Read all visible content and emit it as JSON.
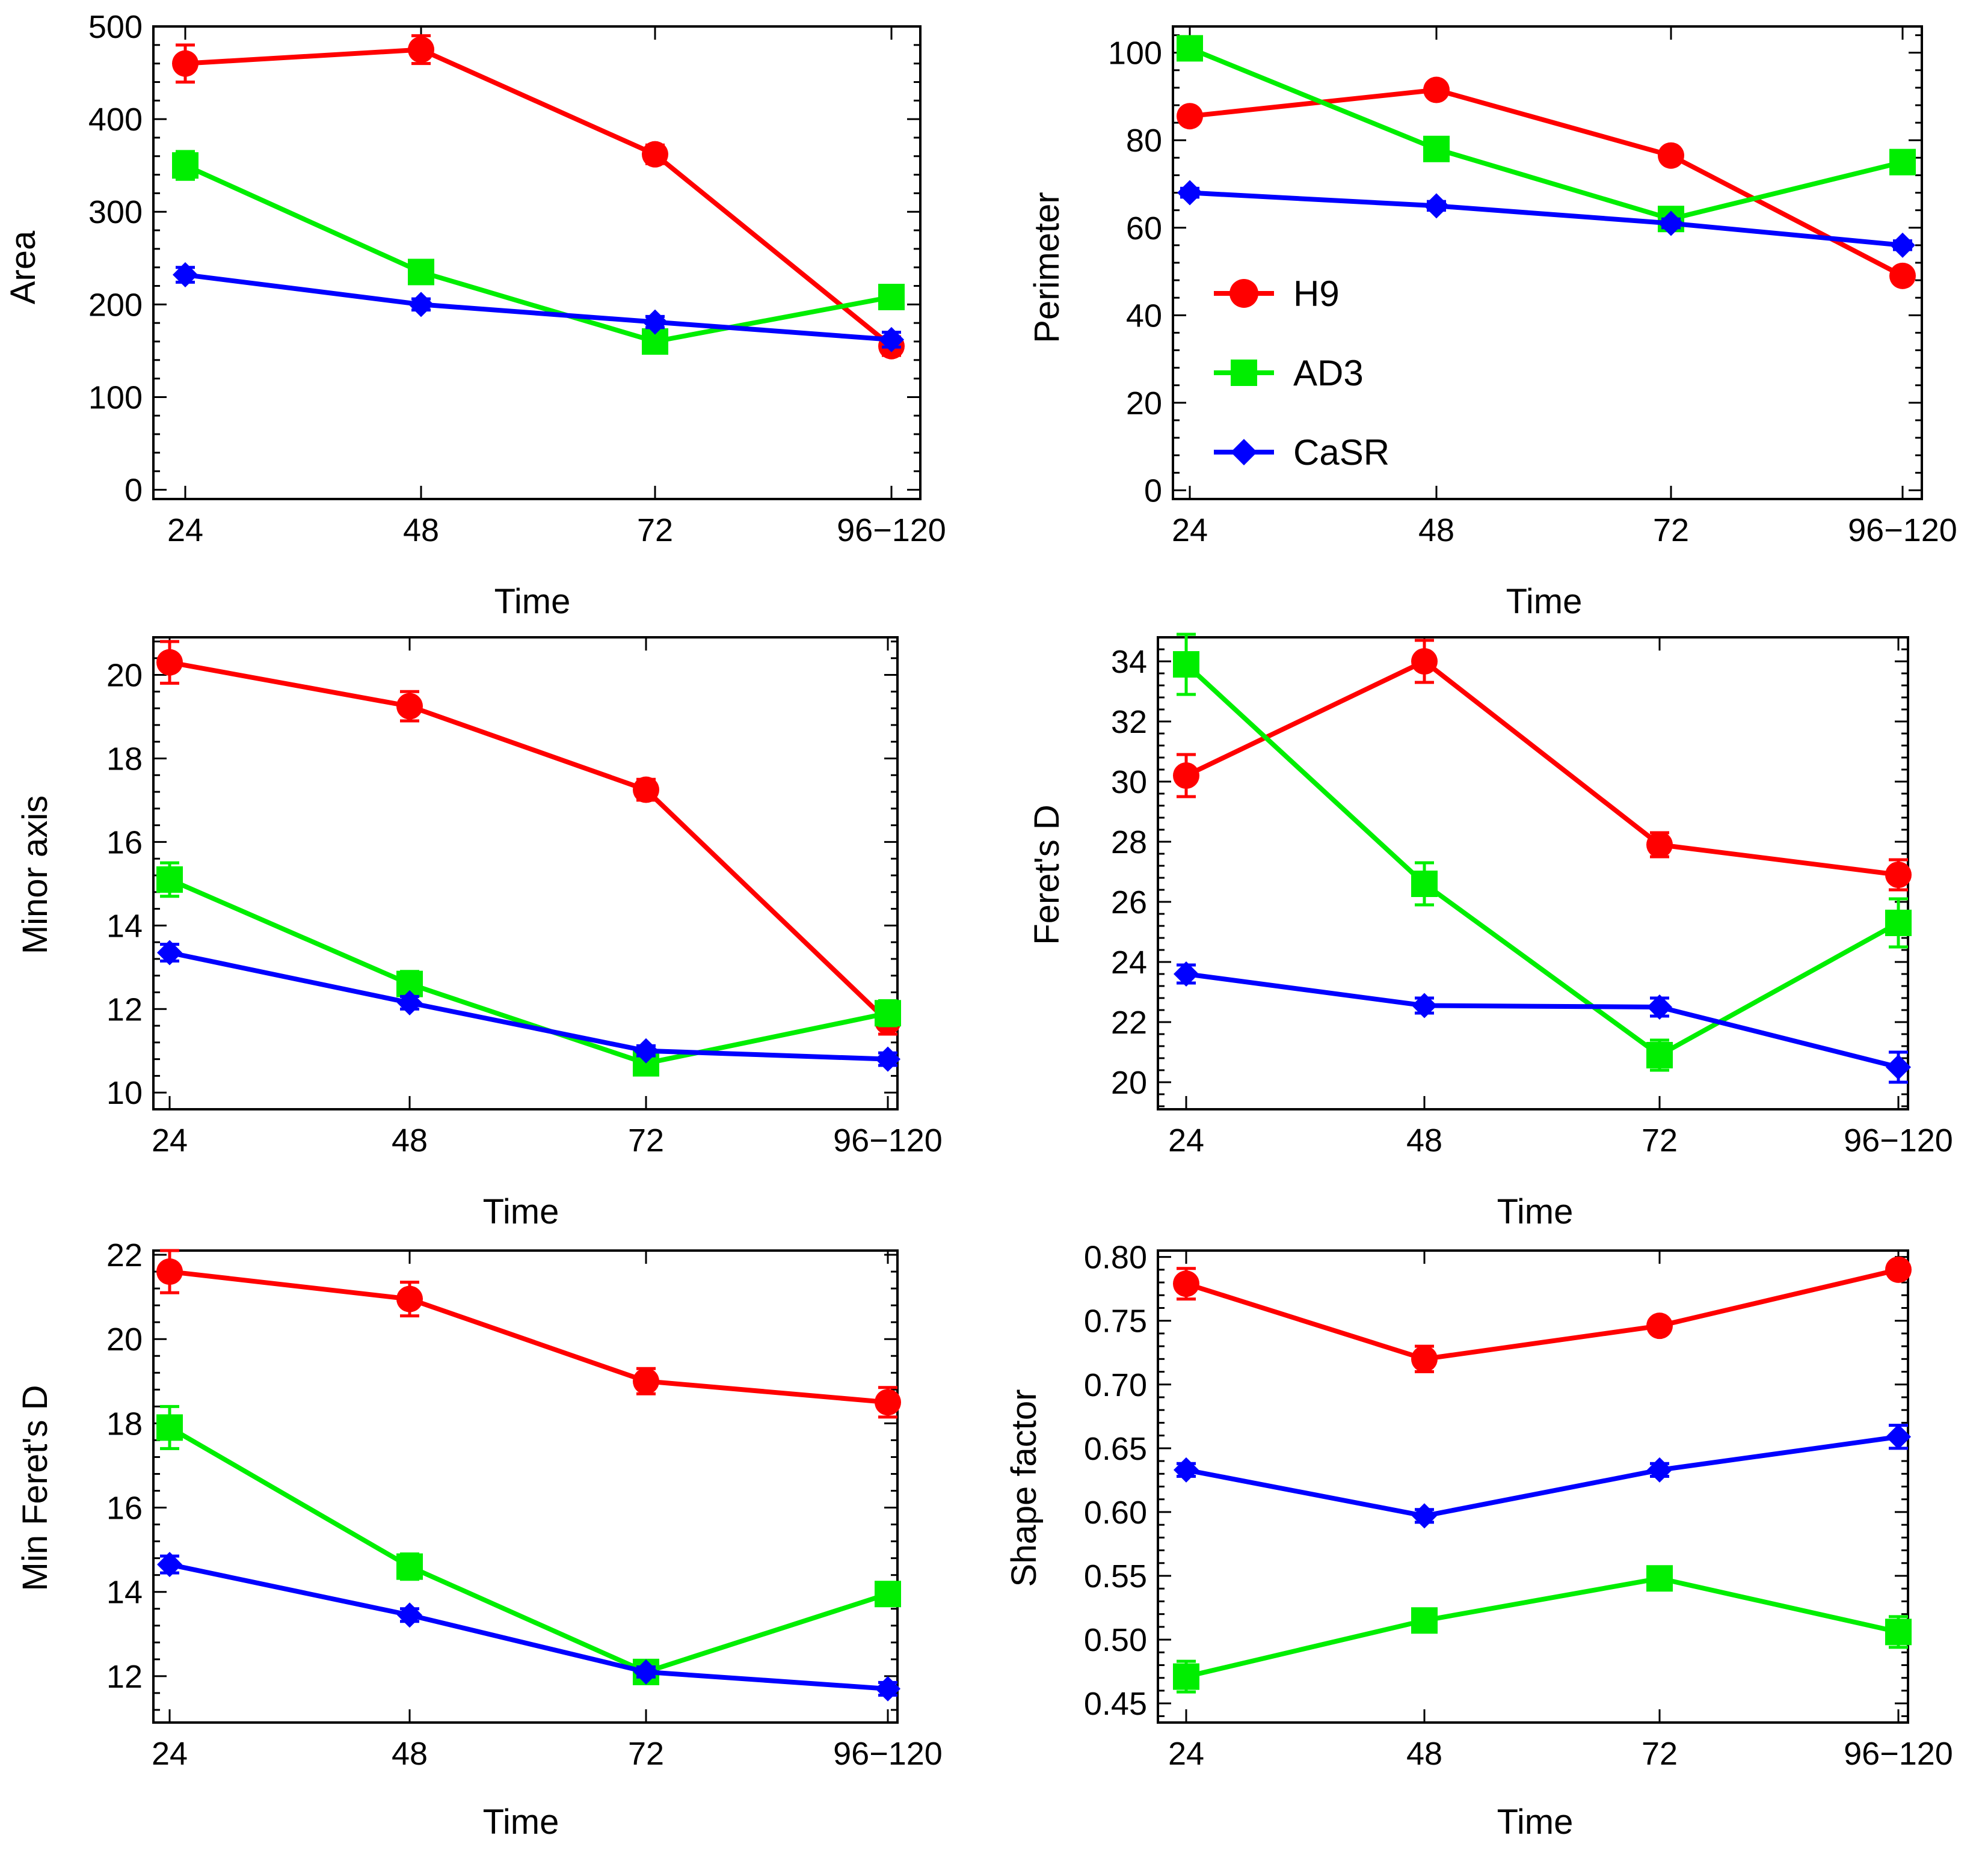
{
  "colors": {
    "H9": "#ff0000",
    "AD3": "#00ee00",
    "CaSR": "#0000ff",
    "axis": "#000000",
    "background": "#ffffff"
  },
  "legend": [
    {
      "name": "H9",
      "marker": "circle"
    },
    {
      "name": "AD3",
      "marker": "square"
    },
    {
      "name": "CaSR",
      "marker": "diamond"
    }
  ],
  "chart_data": [
    {
      "id": "area",
      "type": "line",
      "xlabel": "Time",
      "ylabel": "Area",
      "categories": [
        "24",
        "48",
        "72",
        "96−120"
      ],
      "ylim": [
        -10,
        500
      ],
      "yticks": [
        0,
        100,
        200,
        300,
        400,
        500
      ],
      "series": [
        {
          "name": "H9",
          "values": [
            460,
            475,
            362,
            155
          ],
          "errors": [
            20,
            15,
            10,
            10
          ]
        },
        {
          "name": "AD3",
          "values": [
            350,
            235,
            160,
            208
          ],
          "errors": [
            15,
            12,
            10,
            12
          ]
        },
        {
          "name": "CaSR",
          "values": [
            232,
            200,
            181,
            162
          ],
          "errors": [
            8,
            6,
            6,
            8
          ]
        }
      ]
    },
    {
      "id": "perimeter",
      "type": "line",
      "xlabel": "Time",
      "ylabel": "Perimeter",
      "categories": [
        "24",
        "48",
        "72",
        "96−120"
      ],
      "ylim": [
        -2,
        106
      ],
      "yticks": [
        0,
        20,
        40,
        60,
        80,
        100
      ],
      "legend_position": "middle-left",
      "series": [
        {
          "name": "H9",
          "values": [
            85.5,
            91.5,
            76.5,
            49
          ],
          "errors": [
            1.5,
            1.5,
            1.5,
            1.5
          ]
        },
        {
          "name": "AD3",
          "values": [
            101,
            78,
            62,
            75
          ],
          "errors": [
            2.5,
            2,
            2,
            2
          ]
        },
        {
          "name": "CaSR",
          "values": [
            68,
            65,
            61,
            56
          ],
          "errors": [
            1,
            1,
            1,
            1
          ]
        }
      ]
    },
    {
      "id": "minor-axis",
      "type": "line",
      "xlabel": "Time",
      "ylabel": "Minor axis",
      "categories": [
        "24",
        "48",
        "72",
        "96−120"
      ],
      "ylim": [
        9.6,
        20.9
      ],
      "yticks": [
        10,
        12,
        14,
        16,
        18,
        20
      ],
      "series": [
        {
          "name": "H9",
          "values": [
            20.3,
            19.25,
            17.25,
            11.7
          ],
          "errors": [
            0.5,
            0.35,
            0.25,
            0.3
          ]
        },
        {
          "name": "AD3",
          "values": [
            15.1,
            12.6,
            10.7,
            11.9
          ],
          "errors": [
            0.4,
            0.3,
            0.25,
            0.3
          ]
        },
        {
          "name": "CaSR",
          "values": [
            13.35,
            12.15,
            11.0,
            10.8
          ],
          "errors": [
            0.2,
            0.15,
            0.12,
            0.15
          ]
        }
      ]
    },
    {
      "id": "ferets-d",
      "type": "line",
      "xlabel": "Time",
      "ylabel": "Feret's D",
      "categories": [
        "24",
        "48",
        "72",
        "96−120"
      ],
      "ylim": [
        19.1,
        34.8
      ],
      "yticks": [
        20,
        22,
        24,
        26,
        28,
        30,
        32,
        34
      ],
      "series": [
        {
          "name": "H9",
          "values": [
            30.2,
            34.0,
            27.9,
            26.9
          ],
          "errors": [
            0.7,
            0.7,
            0.4,
            0.5
          ]
        },
        {
          "name": "AD3",
          "values": [
            33.9,
            26.6,
            20.9,
            25.3
          ],
          "errors": [
            1.0,
            0.7,
            0.5,
            0.8
          ]
        },
        {
          "name": "CaSR",
          "values": [
            23.6,
            22.55,
            22.5,
            20.5
          ],
          "errors": [
            0.3,
            0.25,
            0.3,
            0.5
          ]
        }
      ]
    },
    {
      "id": "min-ferets-d",
      "type": "line",
      "xlabel": "Time",
      "ylabel": "Min Feret's D",
      "categories": [
        "24",
        "48",
        "72",
        "96−120"
      ],
      "ylim": [
        10.9,
        22.1
      ],
      "yticks": [
        12,
        14,
        16,
        18,
        20,
        22
      ],
      "series": [
        {
          "name": "H9",
          "values": [
            21.6,
            20.95,
            19.0,
            18.5
          ],
          "errors": [
            0.5,
            0.4,
            0.3,
            0.35
          ]
        },
        {
          "name": "AD3",
          "values": [
            17.9,
            14.6,
            12.1,
            13.95
          ],
          "errors": [
            0.5,
            0.3,
            0.2,
            0.25
          ]
        },
        {
          "name": "CaSR",
          "values": [
            14.65,
            13.45,
            12.1,
            11.7
          ],
          "errors": [
            0.2,
            0.15,
            0.12,
            0.15
          ]
        }
      ]
    },
    {
      "id": "shape-factor",
      "type": "line",
      "xlabel": "Time",
      "ylabel": "Shape factor",
      "categories": [
        "24",
        "48",
        "72",
        "96−120"
      ],
      "ylim": [
        0.435,
        0.805
      ],
      "yticks": [
        0.45,
        0.5,
        0.55,
        0.6,
        0.65,
        0.7,
        0.75,
        0.8
      ],
      "decimals": 2,
      "series": [
        {
          "name": "H9",
          "values": [
            0.779,
            0.72,
            0.746,
            0.79
          ],
          "errors": [
            0.012,
            0.01,
            0.006,
            0.006
          ]
        },
        {
          "name": "AD3",
          "values": [
            0.471,
            0.515,
            0.548,
            0.506
          ],
          "errors": [
            0.012,
            0.008,
            0.007,
            0.012
          ]
        },
        {
          "name": "CaSR",
          "values": [
            0.633,
            0.597,
            0.633,
            0.659
          ],
          "errors": [
            0.005,
            0.005,
            0.005,
            0.009
          ]
        }
      ]
    }
  ]
}
